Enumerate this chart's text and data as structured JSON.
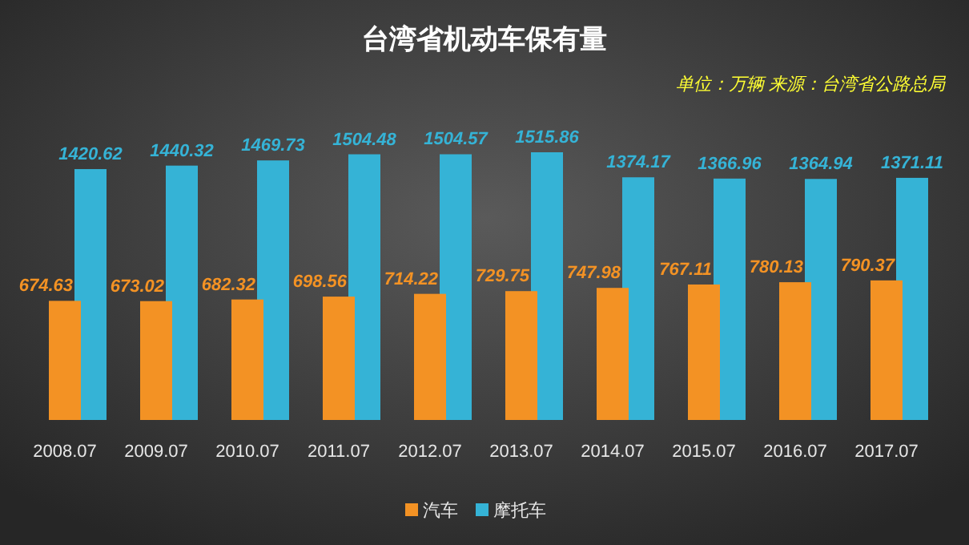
{
  "chart_data": {
    "type": "bar",
    "title": "台湾省机动车保有量",
    "subtitle": "单位：万辆 来源：台湾省公路总局",
    "categories": [
      "2008.07",
      "2009.07",
      "2010.07",
      "2011.07",
      "2012.07",
      "2013.07",
      "2014.07",
      "2015.07",
      "2016.07",
      "2017.07"
    ],
    "series": [
      {
        "name": "汽车",
        "color": "#f39224",
        "values": [
          674.63,
          673.02,
          682.32,
          698.56,
          714.22,
          729.75,
          747.98,
          767.11,
          780.13,
          790.37
        ]
      },
      {
        "name": "摩托车",
        "color": "#35b3d6",
        "values": [
          1420.62,
          1440.32,
          1469.73,
          1504.48,
          1504.57,
          1515.86,
          1374.17,
          1366.96,
          1364.94,
          1371.11
        ]
      }
    ],
    "data_labels": true,
    "legend": "bottom"
  }
}
